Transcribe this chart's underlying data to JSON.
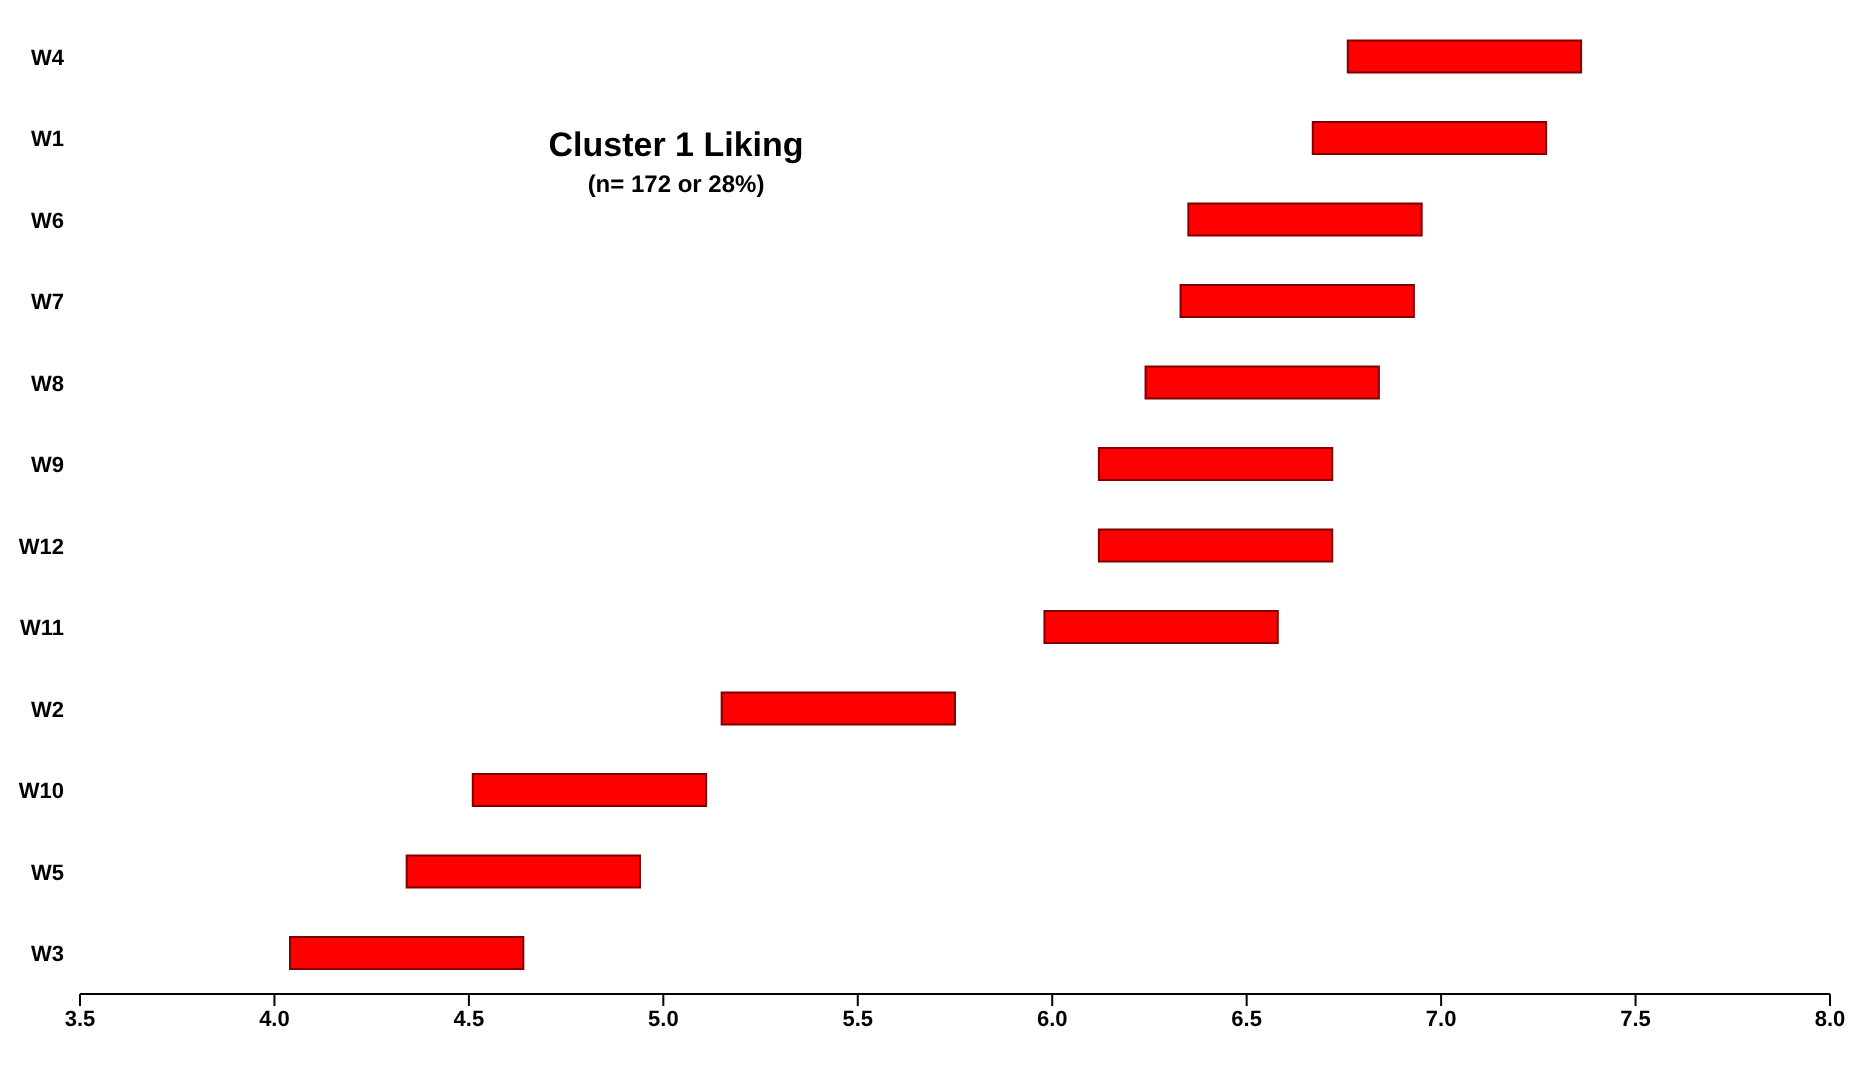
{
  "chart_data": {
    "type": "bar",
    "orientation": "horizontal",
    "title": "Cluster 1 Liking",
    "subtitle": "(n= 172 or 28%)",
    "categories": [
      "W4",
      "W1",
      "W6",
      "W7",
      "W8",
      "W9",
      "W12",
      "W11",
      "W2",
      "W10",
      "W5",
      "W3"
    ],
    "base": [
      6.76,
      6.67,
      6.35,
      6.33,
      6.24,
      6.12,
      6.12,
      5.98,
      5.15,
      4.51,
      4.34,
      4.04
    ],
    "values": [
      0.6,
      0.6,
      0.6,
      0.6,
      0.6,
      0.6,
      0.6,
      0.6,
      0.6,
      0.6,
      0.6,
      0.6
    ],
    "color": "#ff0000",
    "xlim": [
      3.5,
      8.0
    ],
    "xticks": [
      {
        "value": 3.5,
        "label": "3.5"
      },
      {
        "value": 4,
        "label": "4.0"
      },
      {
        "value": 4.5,
        "label": "4.5"
      },
      {
        "value": 5,
        "label": "5.0"
      },
      {
        "value": 5.5,
        "label": "5.5"
      },
      {
        "value": 6,
        "label": "6.0"
      },
      {
        "value": 6.5,
        "label": "6.5"
      },
      {
        "value": 7,
        "label": "7.0"
      },
      {
        "value": 7.5,
        "label": "7.5"
      },
      {
        "value": 8,
        "label": "8.0"
      }
    ],
    "grid": false
  }
}
